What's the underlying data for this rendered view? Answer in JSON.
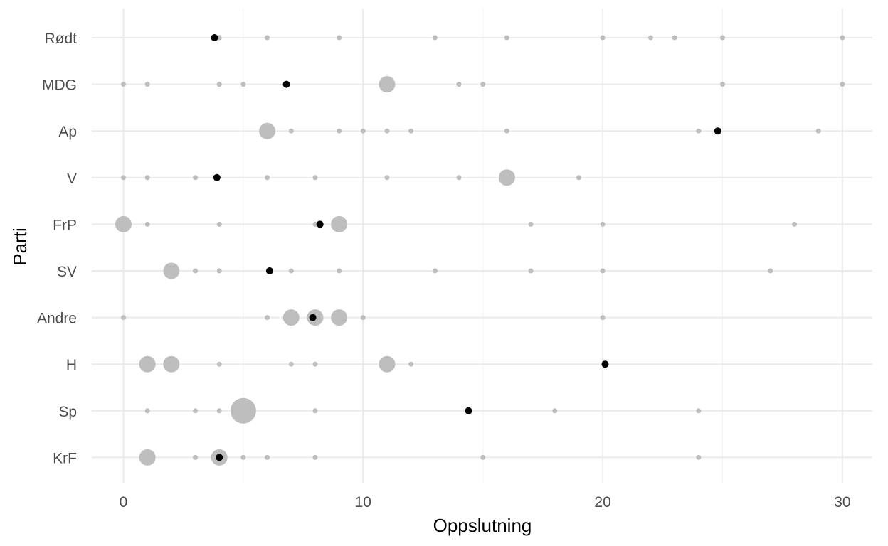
{
  "chart_data": {
    "type": "scatter",
    "xlabel": "Oppslutning",
    "ylabel": "Parti",
    "xlim": [
      -1.3,
      31.3
    ],
    "x_ticks": [
      0,
      10,
      20,
      30
    ],
    "grid": true,
    "colors": {
      "observations": "#bebebe",
      "highlight": "#000000",
      "grid": "#ebebeb"
    },
    "categories": [
      "Rødt",
      "MDG",
      "Ap",
      "V",
      "FrP",
      "SV",
      "Andre",
      "H",
      "Sp",
      "KrF"
    ],
    "series": [
      {
        "points": [
          {
            "category": "Rødt",
            "x": 4,
            "count": 1
          },
          {
            "category": "Rødt",
            "x": 6,
            "count": 1
          },
          {
            "category": "Rødt",
            "x": 9,
            "count": 1
          },
          {
            "category": "Rødt",
            "x": 13,
            "count": 1
          },
          {
            "category": "Rødt",
            "x": 16,
            "count": 1
          },
          {
            "category": "Rødt",
            "x": 20,
            "count": 1
          },
          {
            "category": "Rødt",
            "x": 22,
            "count": 1
          },
          {
            "category": "Rødt",
            "x": 23,
            "count": 1
          },
          {
            "category": "Rødt",
            "x": 25,
            "count": 1
          },
          {
            "category": "Rødt",
            "x": 30,
            "count": 1
          },
          {
            "category": "MDG",
            "x": 0,
            "count": 1
          },
          {
            "category": "MDG",
            "x": 1,
            "count": 1
          },
          {
            "category": "MDG",
            "x": 4,
            "count": 1
          },
          {
            "category": "MDG",
            "x": 5,
            "count": 1
          },
          {
            "category": "MDG",
            "x": 11,
            "count": 2
          },
          {
            "category": "MDG",
            "x": 14,
            "count": 1
          },
          {
            "category": "MDG",
            "x": 15,
            "count": 1
          },
          {
            "category": "MDG",
            "x": 25,
            "count": 1
          },
          {
            "category": "MDG",
            "x": 30,
            "count": 1
          },
          {
            "category": "Ap",
            "x": 6,
            "count": 2
          },
          {
            "category": "Ap",
            "x": 7,
            "count": 1
          },
          {
            "category": "Ap",
            "x": 9,
            "count": 1
          },
          {
            "category": "Ap",
            "x": 10,
            "count": 1
          },
          {
            "category": "Ap",
            "x": 11,
            "count": 1
          },
          {
            "category": "Ap",
            "x": 12,
            "count": 1
          },
          {
            "category": "Ap",
            "x": 16,
            "count": 1
          },
          {
            "category": "Ap",
            "x": 24,
            "count": 1
          },
          {
            "category": "Ap",
            "x": 29,
            "count": 1
          },
          {
            "category": "V",
            "x": 0,
            "count": 1
          },
          {
            "category": "V",
            "x": 1,
            "count": 1
          },
          {
            "category": "V",
            "x": 3,
            "count": 1
          },
          {
            "category": "V",
            "x": 6,
            "count": 1
          },
          {
            "category": "V",
            "x": 8,
            "count": 1
          },
          {
            "category": "V",
            "x": 11,
            "count": 1
          },
          {
            "category": "V",
            "x": 14,
            "count": 1
          },
          {
            "category": "V",
            "x": 16,
            "count": 2
          },
          {
            "category": "V",
            "x": 19,
            "count": 1
          },
          {
            "category": "FrP",
            "x": 0,
            "count": 2
          },
          {
            "category": "FrP",
            "x": 1,
            "count": 1
          },
          {
            "category": "FrP",
            "x": 4,
            "count": 1
          },
          {
            "category": "FrP",
            "x": 8,
            "count": 1
          },
          {
            "category": "FrP",
            "x": 9,
            "count": 2
          },
          {
            "category": "FrP",
            "x": 17,
            "count": 1
          },
          {
            "category": "FrP",
            "x": 20,
            "count": 1
          },
          {
            "category": "FrP",
            "x": 28,
            "count": 1
          },
          {
            "category": "SV",
            "x": 2,
            "count": 2
          },
          {
            "category": "SV",
            "x": 3,
            "count": 1
          },
          {
            "category": "SV",
            "x": 4,
            "count": 1
          },
          {
            "category": "SV",
            "x": 7,
            "count": 1
          },
          {
            "category": "SV",
            "x": 9,
            "count": 1
          },
          {
            "category": "SV",
            "x": 13,
            "count": 1
          },
          {
            "category": "SV",
            "x": 17,
            "count": 1
          },
          {
            "category": "SV",
            "x": 20,
            "count": 1
          },
          {
            "category": "SV",
            "x": 27,
            "count": 1
          },
          {
            "category": "Andre",
            "x": 0,
            "count": 1
          },
          {
            "category": "Andre",
            "x": 6,
            "count": 1
          },
          {
            "category": "Andre",
            "x": 7,
            "count": 2
          },
          {
            "category": "Andre",
            "x": 8,
            "count": 2
          },
          {
            "category": "Andre",
            "x": 9,
            "count": 2
          },
          {
            "category": "Andre",
            "x": 10,
            "count": 1
          },
          {
            "category": "Andre",
            "x": 20,
            "count": 1
          },
          {
            "category": "H",
            "x": 1,
            "count": 2
          },
          {
            "category": "H",
            "x": 2,
            "count": 2
          },
          {
            "category": "H",
            "x": 4,
            "count": 1
          },
          {
            "category": "H",
            "x": 7,
            "count": 1
          },
          {
            "category": "H",
            "x": 8,
            "count": 1
          },
          {
            "category": "H",
            "x": 11,
            "count": 2
          },
          {
            "category": "H",
            "x": 12,
            "count": 1
          },
          {
            "category": "Sp",
            "x": 1,
            "count": 1
          },
          {
            "category": "Sp",
            "x": 3,
            "count": 1
          },
          {
            "category": "Sp",
            "x": 4,
            "count": 1
          },
          {
            "category": "Sp",
            "x": 5,
            "count": 3
          },
          {
            "category": "Sp",
            "x": 8,
            "count": 1
          },
          {
            "category": "Sp",
            "x": 18,
            "count": 1
          },
          {
            "category": "Sp",
            "x": 24,
            "count": 1
          },
          {
            "category": "KrF",
            "x": 1,
            "count": 2
          },
          {
            "category": "KrF",
            "x": 3,
            "count": 1
          },
          {
            "category": "KrF",
            "x": 4,
            "count": 2
          },
          {
            "category": "KrF",
            "x": 5,
            "count": 1
          },
          {
            "category": "KrF",
            "x": 6,
            "count": 1
          },
          {
            "category": "KrF",
            "x": 8,
            "count": 1
          },
          {
            "category": "KrF",
            "x": 15,
            "count": 1
          },
          {
            "category": "KrF",
            "x": 24,
            "count": 1
          }
        ]
      },
      {
        "points": [
          {
            "category": "Rødt",
            "x": 3.8
          },
          {
            "category": "MDG",
            "x": 6.8
          },
          {
            "category": "Ap",
            "x": 24.8
          },
          {
            "category": "V",
            "x": 3.9
          },
          {
            "category": "FrP",
            "x": 8.2
          },
          {
            "category": "SV",
            "x": 6.1
          },
          {
            "category": "Andre",
            "x": 7.9
          },
          {
            "category": "H",
            "x": 20.1
          },
          {
            "category": "Sp",
            "x": 14.4
          },
          {
            "category": "KrF",
            "x": 4
          }
        ]
      }
    ]
  }
}
